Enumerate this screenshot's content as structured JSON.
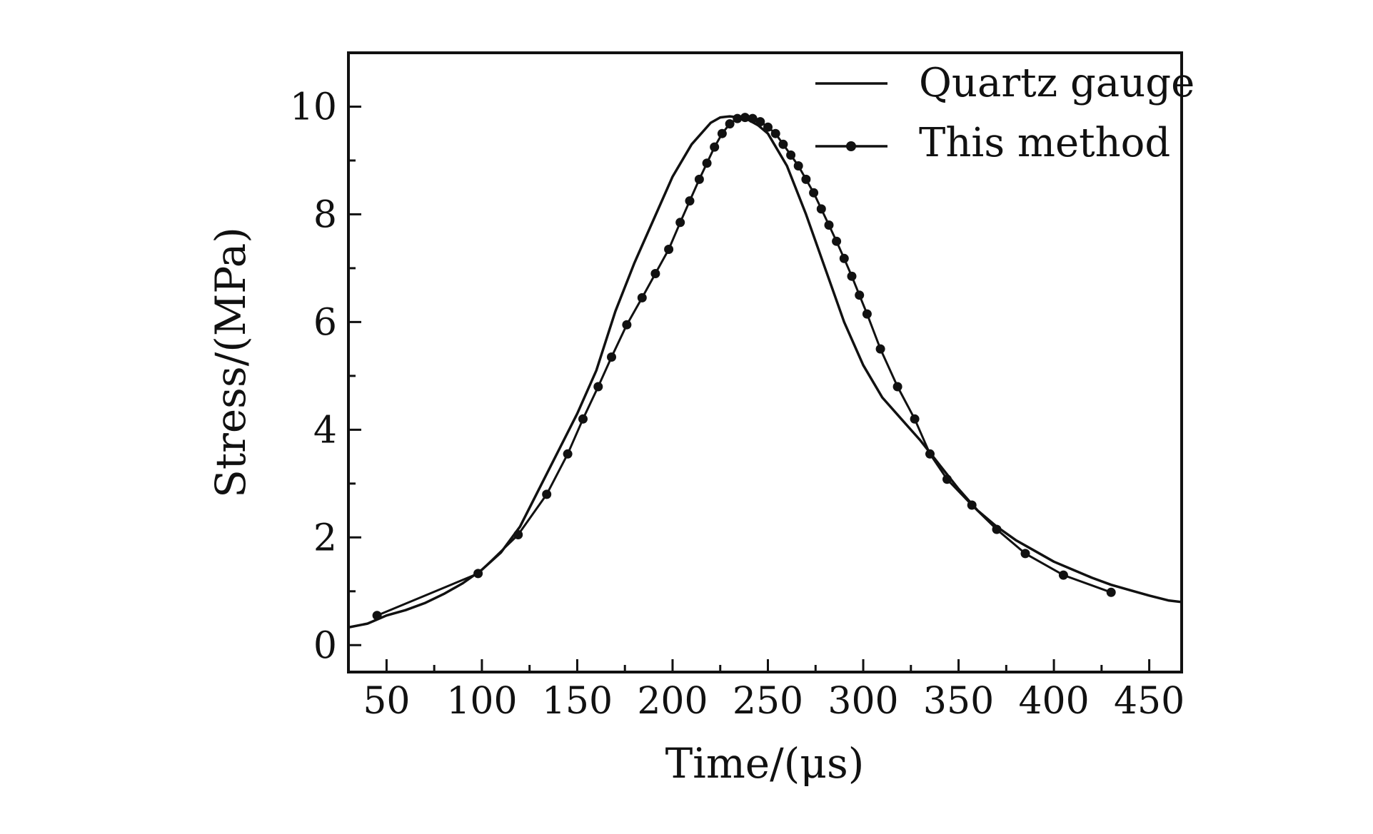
{
  "chart_data": {
    "type": "line",
    "title": "",
    "xlabel": "Time/(μs)",
    "ylabel": "Stress/(MPa)",
    "xlim": [
      30,
      467
    ],
    "ylim": [
      -0.5,
      11
    ],
    "xticks": [
      50,
      100,
      150,
      200,
      250,
      300,
      350,
      400,
      450
    ],
    "yticks": [
      0,
      2,
      4,
      6,
      8,
      10
    ],
    "xtick_labels": [
      "50",
      "100",
      "150",
      "200",
      "250",
      "300",
      "350",
      "400",
      "450"
    ],
    "ytick_labels": [
      "0",
      "2",
      "4",
      "6",
      "8",
      "10"
    ],
    "legend_position": "top-right",
    "series": [
      {
        "name": "Quartz gauge",
        "marker": "none",
        "color": "#111111",
        "x": [
          30,
          40,
          50,
          60,
          70,
          80,
          90,
          100,
          110,
          120,
          130,
          140,
          150,
          160,
          170,
          180,
          190,
          200,
          210,
          220,
          225,
          230,
          235,
          240,
          245,
          250,
          260,
          270,
          280,
          290,
          300,
          310,
          320,
          330,
          340,
          350,
          360,
          370,
          380,
          390,
          400,
          410,
          420,
          430,
          440,
          450,
          460,
          467
        ],
        "y": [
          0.33,
          0.4,
          0.55,
          0.65,
          0.78,
          0.95,
          1.15,
          1.4,
          1.72,
          2.2,
          2.9,
          3.6,
          4.3,
          5.1,
          6.2,
          7.1,
          7.9,
          8.7,
          9.3,
          9.7,
          9.8,
          9.82,
          9.8,
          9.75,
          9.65,
          9.5,
          8.9,
          8.0,
          7.0,
          6.0,
          5.2,
          4.6,
          4.2,
          3.8,
          3.35,
          2.9,
          2.5,
          2.2,
          1.95,
          1.75,
          1.55,
          1.4,
          1.25,
          1.12,
          1.02,
          0.92,
          0.83,
          0.8
        ]
      },
      {
        "name": "This method",
        "marker": "circle",
        "color": "#111111",
        "x": [
          45,
          98,
          119,
          134,
          145,
          153,
          161,
          168,
          176,
          184,
          191,
          198,
          204,
          209,
          214,
          218,
          222,
          226,
          230,
          234,
          238,
          242,
          246,
          250,
          254,
          258,
          262,
          266,
          270,
          274,
          278,
          282,
          286,
          290,
          294,
          298,
          302,
          309,
          318,
          327,
          335,
          344,
          357,
          370,
          385,
          405,
          430
        ],
        "y": [
          0.55,
          1.33,
          2.05,
          2.8,
          3.55,
          4.2,
          4.8,
          5.35,
          5.95,
          6.45,
          6.9,
          7.35,
          7.85,
          8.25,
          8.65,
          8.95,
          9.25,
          9.5,
          9.68,
          9.78,
          9.8,
          9.78,
          9.72,
          9.62,
          9.5,
          9.3,
          9.1,
          8.9,
          8.65,
          8.4,
          8.1,
          7.8,
          7.5,
          7.18,
          6.85,
          6.5,
          6.15,
          5.5,
          4.8,
          4.2,
          3.55,
          3.08,
          2.6,
          2.15,
          1.7,
          1.3,
          0.98
        ]
      }
    ]
  }
}
